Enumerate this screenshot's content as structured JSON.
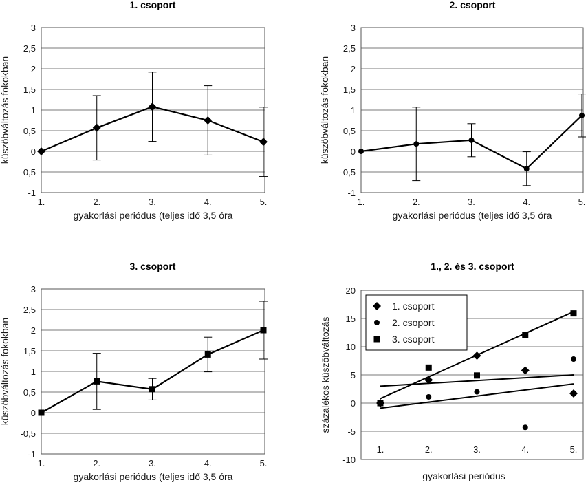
{
  "chart_data": [
    {
      "type": "line",
      "title": "1. csoport",
      "xlabel": "gyakorlási periódus (teljes idő 3,5 óra",
      "ylabel": "küszöbváltozás fokokban",
      "categories": [
        "1.",
        "2.",
        "3.",
        "4.",
        "5."
      ],
      "yticks": [
        "-1",
        "-0,5",
        "0",
        "0,5",
        "1",
        "1,5",
        "2",
        "2,5",
        "3"
      ],
      "ylim": [
        -1,
        3
      ],
      "marker": "diamond",
      "values": [
        0,
        0.57,
        1.08,
        0.75,
        0.23
      ],
      "errors": [
        0,
        0.78,
        0.84,
        0.84,
        0.84
      ]
    },
    {
      "type": "line",
      "title": "2. csoport",
      "xlabel": "gyakorlási periódus (teljes idő 3,5 óra",
      "ylabel": "küszöbváltozás fokokban",
      "categories": [
        "1.",
        "2.",
        "3.",
        "4.",
        "5."
      ],
      "yticks": [
        "-1",
        "-0,5",
        "0",
        "0,5",
        "1",
        "1,5",
        "2",
        "2,5",
        "3"
      ],
      "ylim": [
        -1,
        3
      ],
      "marker": "circle",
      "values": [
        0,
        0.18,
        0.27,
        -0.42,
        0.87
      ],
      "errors": [
        0,
        0.89,
        0.4,
        0.41,
        0.52
      ]
    },
    {
      "type": "line",
      "title": "3. csoport",
      "xlabel": "gyakorlási periódus (teljes idő 3,5 óra",
      "ylabel": "küszöbváltozás fokokban",
      "categories": [
        "1.",
        "2.",
        "3.",
        "4.",
        "5."
      ],
      "yticks": [
        "-1",
        "-0,5",
        "0",
        "0,5",
        "1",
        "1,5",
        "2",
        "2,5",
        "3"
      ],
      "ylim": [
        -1,
        3
      ],
      "marker": "square",
      "values": [
        0,
        0.76,
        0.57,
        1.41,
        2.0
      ],
      "errors": [
        0,
        0.68,
        0.26,
        0.42,
        0.7
      ]
    },
    {
      "type": "scatter",
      "title": "1., 2. és 3. csoport",
      "xlabel": "gyakorlási periódus",
      "ylabel": "százalékos küszöbváltozás",
      "categories": [
        "1.",
        "2.",
        "3.",
        "4.",
        "5."
      ],
      "yticks": [
        "-10",
        "-5",
        "0",
        "5",
        "10",
        "15",
        "20"
      ],
      "ylim": [
        -10,
        20
      ],
      "legend_position": "top-left",
      "series": [
        {
          "name": "1. csoport",
          "marker": "diamond",
          "values": [
            0,
            4.1,
            8.4,
            5.8,
            1.7
          ],
          "trend": [
            3.0,
            5.0
          ]
        },
        {
          "name": "2. csoport",
          "marker": "circle",
          "values": [
            0,
            1.1,
            2.0,
            -4.3,
            7.8
          ],
          "trend": [
            -0.9,
            3.4
          ]
        },
        {
          "name": "3. csoport",
          "marker": "square",
          "values": [
            0,
            6.3,
            4.9,
            12.1,
            15.9
          ],
          "trend": [
            0.8,
            16.2
          ]
        }
      ]
    }
  ]
}
